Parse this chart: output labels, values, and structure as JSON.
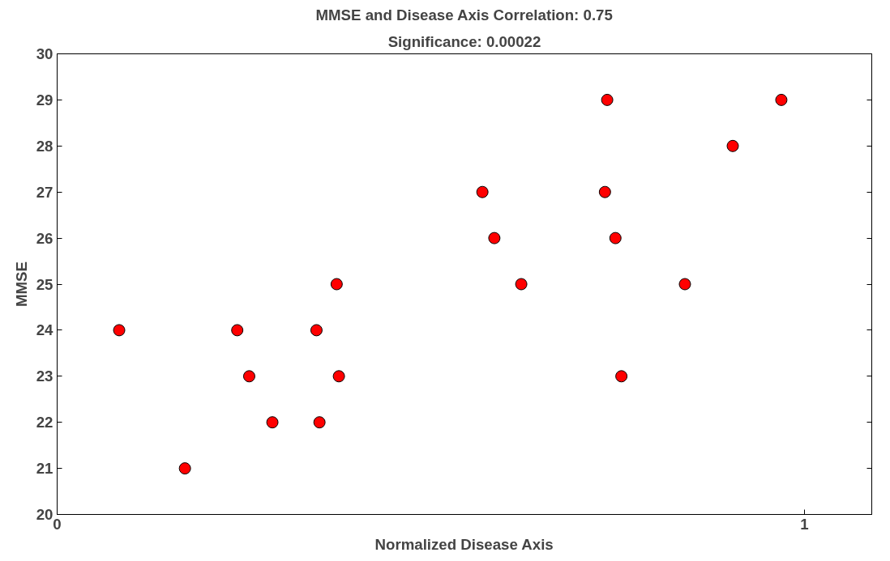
{
  "chart_data": {
    "type": "scatter",
    "title": "MMSE and Disease Axis Correlation: 0.75",
    "subtitle": "Significance: 0.00022",
    "xlabel": "Normalized Disease Axis",
    "ylabel": "MMSE",
    "x": [
      0.083,
      0.171,
      0.241,
      0.257,
      0.288,
      0.347,
      0.351,
      0.374,
      0.377,
      0.569,
      0.585,
      0.621,
      0.736,
      0.733,
      0.747,
      0.755,
      0.84,
      0.904,
      0.969
    ],
    "series": [
      {
        "color": "#ff0000",
        "values": [
          24,
          21,
          24,
          23,
          22,
          24,
          22,
          25,
          23,
          27,
          26,
          25,
          29,
          27,
          26,
          23,
          25,
          28,
          29
        ]
      }
    ],
    "xlim": [
      0,
      1.09
    ],
    "xticks": [
      0,
      1
    ],
    "ylim": [
      20,
      30
    ],
    "yticks": [
      20,
      21,
      22,
      23,
      24,
      25,
      26,
      27,
      28,
      29,
      30
    ],
    "grid": false,
    "marker": "circle"
  }
}
